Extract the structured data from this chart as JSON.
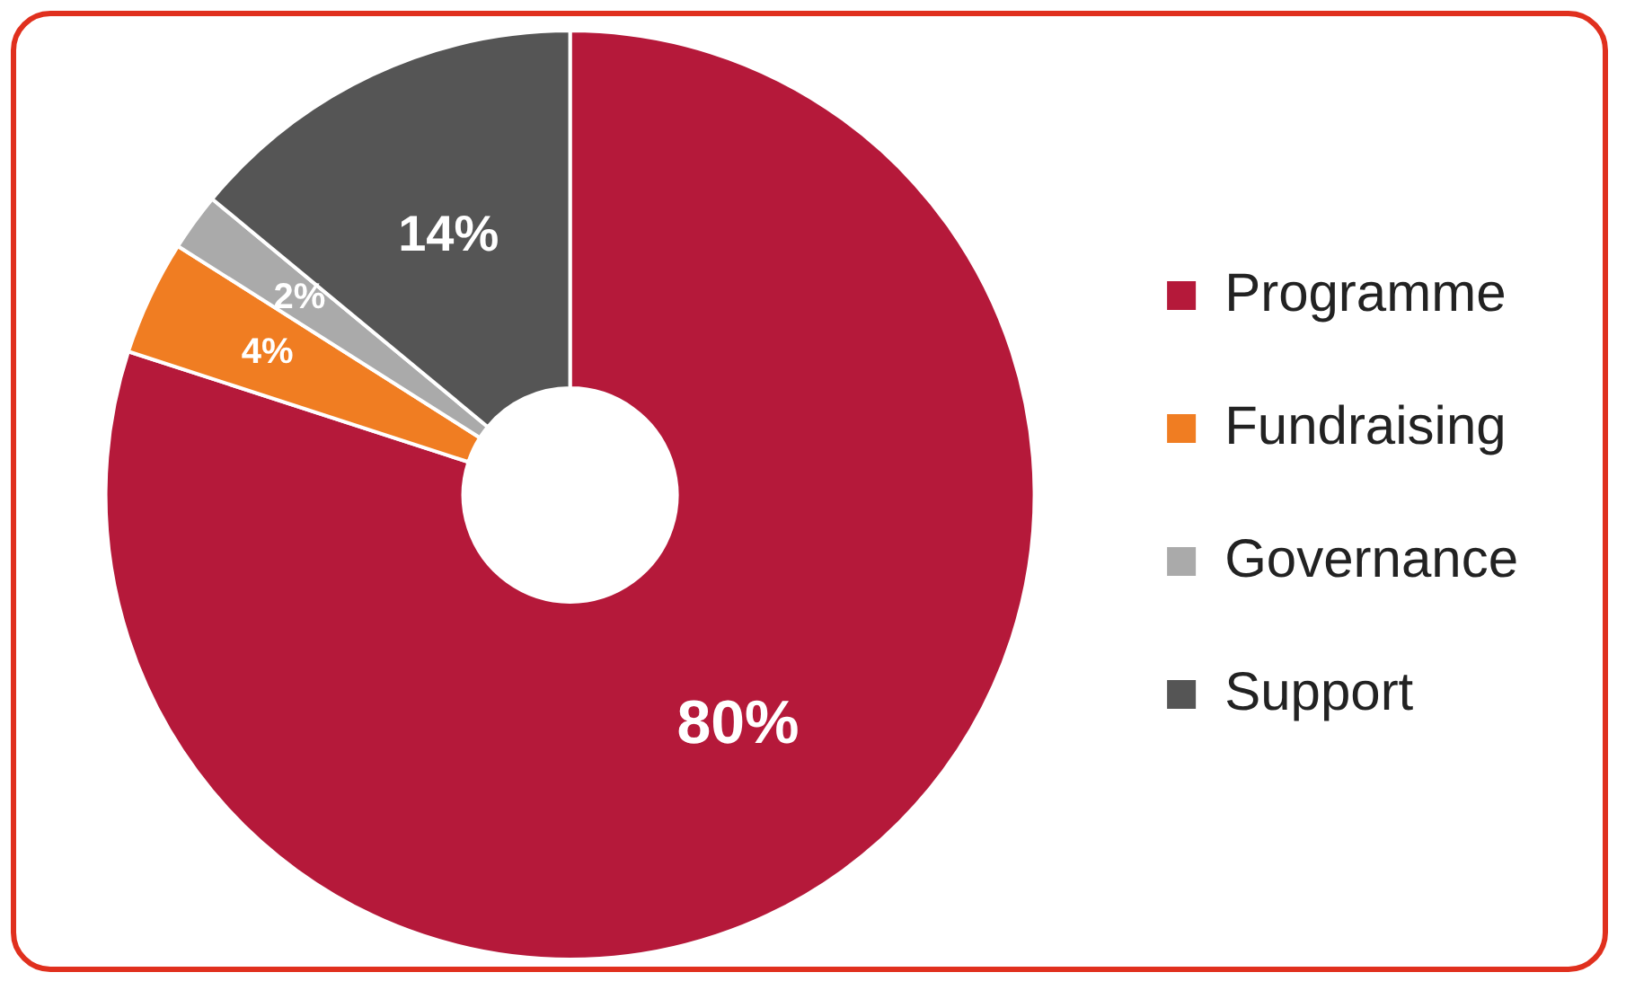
{
  "chart_data": {
    "type": "donut",
    "categories": [
      "Programme",
      "Fundraising",
      "Governance",
      "Support"
    ],
    "values": [
      80,
      4,
      2,
      14
    ],
    "colors": [
      "#b5193a",
      "#f07d22",
      "#aaaaaa",
      "#555555"
    ],
    "value_labels": [
      "80%",
      "4%",
      "2%",
      "14%"
    ],
    "legend": "right"
  }
}
